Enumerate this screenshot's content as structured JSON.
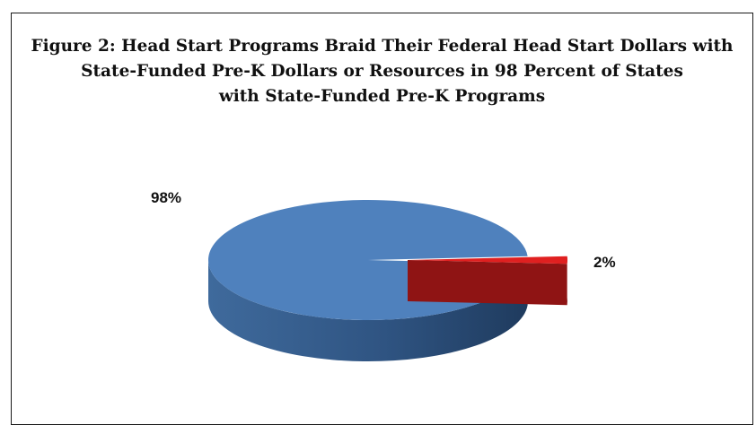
{
  "chart_data": {
    "type": "pie",
    "style": "3d",
    "title_lines": [
      "Figure 2: Head Start Programs Braid Their Federal Head Start Dollars with",
      "State-Funded Pre-K Dollars or Resources in 98 Percent of States",
      "with State-Funded Pre-K Programs"
    ],
    "slices": [
      {
        "value": 98,
        "label": "98%",
        "color": "#4f81bd",
        "side_dark": "#2c4d74",
        "side_light": "#3d6696"
      },
      {
        "value": 2,
        "label": "2%",
        "color": "#e02020",
        "side_dark": "#6a0d0d",
        "side_light": "#8f1414",
        "exploded": true
      }
    ],
    "legend": "none"
  }
}
